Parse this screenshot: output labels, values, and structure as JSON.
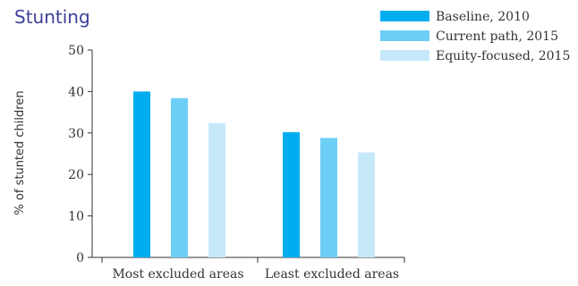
{
  "chart_data": {
    "type": "bar",
    "title": "Stunting",
    "xlabel": "",
    "ylabel": "% of stunted children",
    "ylim": [
      0,
      50
    ],
    "yticks": [
      0,
      10,
      20,
      30,
      40,
      50
    ],
    "grid": false,
    "legend_position": "top-right",
    "categories": [
      "Most excluded areas",
      "Least excluded areas"
    ],
    "series": [
      {
        "name": "Baseline, 2010",
        "color": "#00aeef",
        "values": [
          40,
          30.2
        ]
      },
      {
        "name": "Current path, 2015",
        "color": "#6dcff6",
        "values": [
          38.4,
          28.8
        ]
      },
      {
        "name": "Equity-focused, 2015",
        "color": "#c6e9fa",
        "values": [
          32.4,
          25.3
        ]
      }
    ]
  }
}
